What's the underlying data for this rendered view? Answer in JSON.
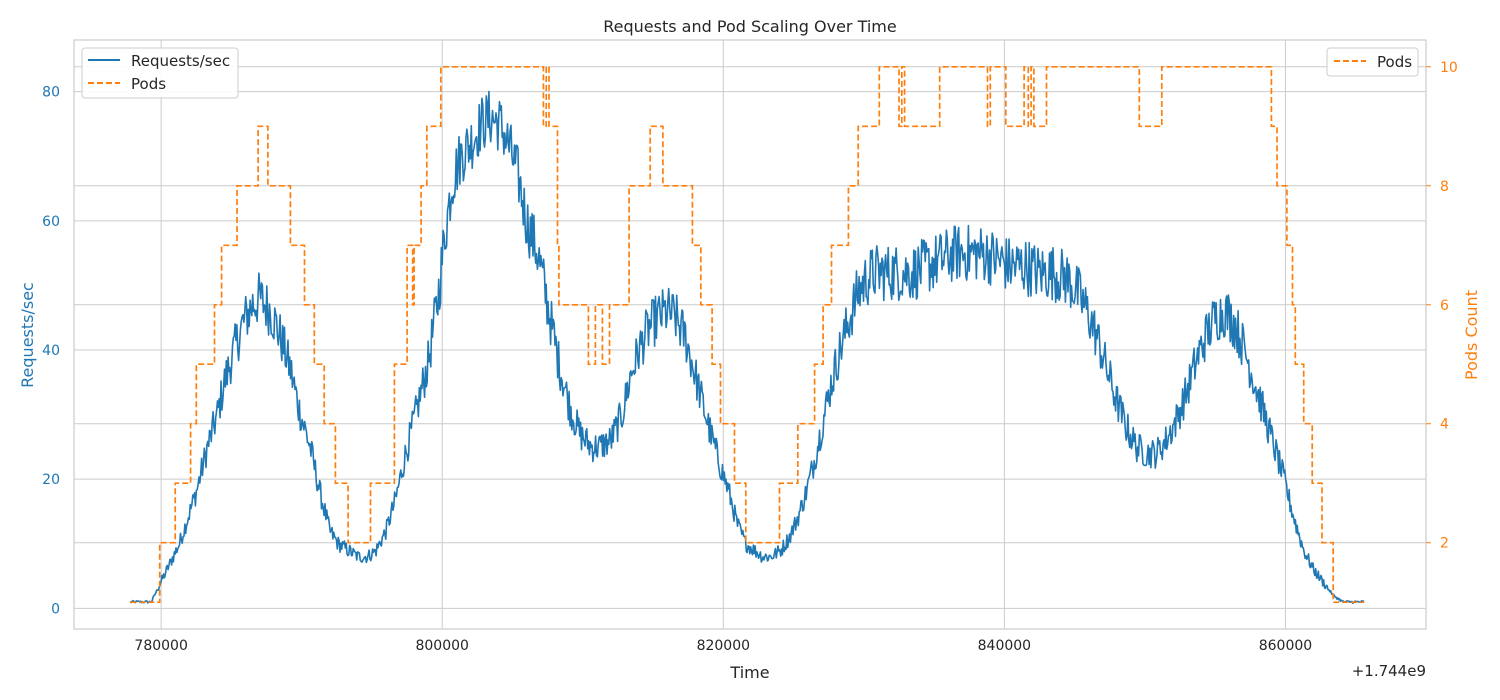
{
  "chart_data": {
    "type": "line",
    "title": "Requests and Pod Scaling Over Time",
    "xlabel": "Time",
    "ylabel_left": "Requests/sec",
    "ylabel_right": "Pods Count",
    "x_offset_label": "+1.744e9",
    "xlim": [
      773800,
      870000
    ],
    "ylim_left": [
      -3.2,
      88
    ],
    "ylim_right": [
      0.55,
      10.45
    ],
    "x_ticks": [
      780000,
      800000,
      820000,
      840000,
      860000
    ],
    "x_tick_labels": [
      "780000",
      "800000",
      "820000",
      "840000",
      "860000"
    ],
    "y_left_ticks": [
      0,
      20,
      40,
      60,
      80
    ],
    "y_left_tick_labels": [
      "0",
      "20",
      "40",
      "60",
      "80"
    ],
    "y_right_ticks": [
      2,
      4,
      6,
      8,
      10
    ],
    "y_right_tick_labels": [
      "2",
      "4",
      "6",
      "8",
      "10"
    ],
    "grid": true,
    "legend_left": {
      "position": "top-left",
      "entries": [
        "Requests/sec",
        "Pods"
      ]
    },
    "legend_right": {
      "position": "top-right",
      "entries": [
        "Pods"
      ]
    },
    "colors": {
      "requests": "#1f77b4",
      "pods": "#ff7f0e",
      "grid": "#cccccc",
      "text": "#262626"
    },
    "series": [
      {
        "name": "Requests/sec",
        "axis": "left",
        "style": "solid",
        "x": [
          777800,
          779300,
          780200,
          781300,
          782500,
          783300,
          784000,
          784500,
          785200,
          785800,
          786500,
          787000,
          787800,
          788500,
          789200,
          789800,
          790600,
          791300,
          792000,
          792600,
          793300,
          794000,
          794700,
          795300,
          796000,
          796700,
          797300,
          798100,
          799000,
          799700,
          800200,
          800700,
          801300,
          802000,
          802800,
          803400,
          804100,
          804700,
          805400,
          806000,
          806800,
          807500,
          808300,
          809100,
          809800,
          810600,
          811200,
          812000,
          812800,
          813400,
          814000,
          814600,
          815300,
          816000,
          816600,
          817300,
          817900,
          818500,
          819100,
          819800,
          820400,
          821000,
          821600,
          822200,
          822800,
          823400,
          824100,
          824700,
          825300,
          825900,
          826500,
          827100,
          827700,
          828300,
          829000,
          829600,
          830200,
          830800,
          831500,
          832500,
          833500,
          834500,
          835500,
          836500,
          837500,
          838500,
          839500,
          840500,
          841500,
          842500,
          843500,
          844500,
          845200,
          845900,
          846600,
          847300,
          848000,
          848700,
          849400,
          850100,
          850800,
          851500,
          852200,
          852900,
          853600,
          854300,
          855000,
          855700,
          856400,
          857100,
          857800,
          858500,
          859200,
          859900,
          860600,
          861300,
          862000,
          862700,
          863400,
          864100,
          864800,
          865600
        ],
        "values": [
          1,
          1,
          5,
          10,
          18,
          25,
          30,
          35,
          40,
          44,
          47,
          48,
          46,
          42,
          37,
          31,
          25,
          18,
          12,
          10,
          9,
          8,
          8,
          9,
          12,
          17,
          23,
          30,
          38,
          48,
          58,
          66,
          70,
          72,
          75,
          76,
          75,
          72,
          67,
          60,
          55,
          47,
          38,
          31,
          27,
          25,
          25,
          26,
          30,
          36,
          40,
          43,
          45,
          46,
          45,
          42,
          37,
          32,
          27,
          22,
          18,
          13,
          10,
          9,
          8,
          8,
          9,
          11,
          14,
          18,
          23,
          29,
          35,
          40,
          45,
          49,
          51,
          52,
          52,
          52,
          52,
          53,
          54,
          55,
          55,
          55,
          54,
          53,
          53,
          52,
          52,
          51,
          49,
          46,
          42,
          37,
          32,
          28,
          25,
          24,
          24,
          26,
          29,
          33,
          38,
          42,
          45,
          46,
          44,
          40,
          35,
          30,
          25,
          20,
          14,
          9,
          6,
          4,
          2,
          1,
          1,
          1
        ]
      },
      {
        "name": "Pods",
        "axis": "right",
        "style": "dashed",
        "steps": [
          [
            777800,
            1
          ],
          [
            779900,
            2
          ],
          [
            781000,
            3
          ],
          [
            782100,
            4
          ],
          [
            782500,
            5
          ],
          [
            783800,
            6
          ],
          [
            784300,
            7
          ],
          [
            785400,
            8
          ],
          [
            786900,
            9
          ],
          [
            787600,
            8
          ],
          [
            789200,
            7
          ],
          [
            790200,
            6
          ],
          [
            790900,
            5
          ],
          [
            791600,
            4
          ],
          [
            792400,
            3
          ],
          [
            793300,
            2
          ],
          [
            794900,
            3
          ],
          [
            796600,
            5
          ],
          [
            797500,
            7
          ],
          [
            797900,
            6
          ],
          [
            798000,
            7
          ],
          [
            798500,
            8
          ],
          [
            798900,
            9
          ],
          [
            799900,
            10
          ],
          [
            807200,
            9
          ],
          [
            807400,
            10
          ],
          [
            807600,
            9
          ],
          [
            808200,
            7
          ],
          [
            808300,
            6
          ],
          [
            810400,
            5
          ],
          [
            810900,
            6
          ],
          [
            811400,
            5
          ],
          [
            811900,
            6
          ],
          [
            813300,
            8
          ],
          [
            814800,
            9
          ],
          [
            815700,
            8
          ],
          [
            817800,
            7
          ],
          [
            818400,
            6
          ],
          [
            819200,
            5
          ],
          [
            819800,
            4
          ],
          [
            820800,
            3
          ],
          [
            821600,
            2
          ],
          [
            824000,
            3
          ],
          [
            825300,
            4
          ],
          [
            826500,
            5
          ],
          [
            827100,
            6
          ],
          [
            827700,
            7
          ],
          [
            828900,
            8
          ],
          [
            829600,
            9
          ],
          [
            831100,
            10
          ],
          [
            832500,
            9
          ],
          [
            832700,
            10
          ],
          [
            832900,
            9
          ],
          [
            835400,
            10
          ],
          [
            838800,
            9
          ],
          [
            839000,
            10
          ],
          [
            840100,
            9
          ],
          [
            841400,
            10
          ],
          [
            841700,
            9
          ],
          [
            841900,
            10
          ],
          [
            842100,
            9
          ],
          [
            843000,
            10
          ],
          [
            849600,
            9
          ],
          [
            851200,
            10
          ],
          [
            859000,
            9
          ],
          [
            859400,
            8
          ],
          [
            860100,
            7
          ],
          [
            860500,
            6
          ],
          [
            860700,
            5
          ],
          [
            861300,
            4
          ],
          [
            861900,
            3
          ],
          [
            862600,
            2
          ],
          [
            863400,
            1
          ],
          [
            865600,
            1
          ]
        ]
      }
    ]
  }
}
